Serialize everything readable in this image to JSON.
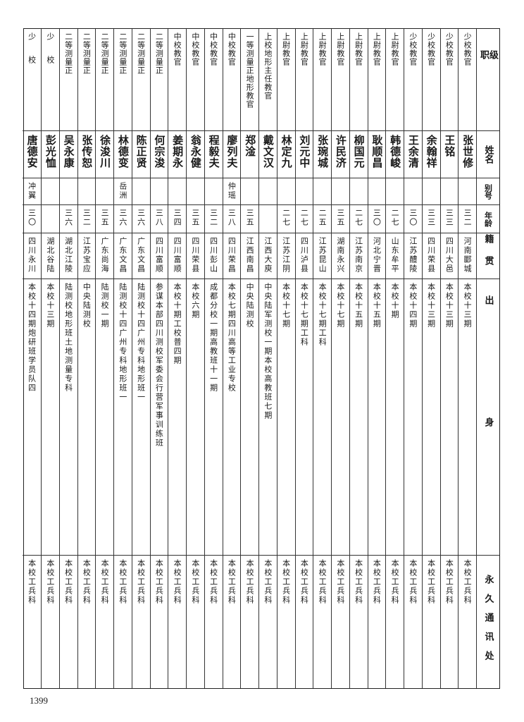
{
  "header": {
    "rank": "级职",
    "name": "姓名",
    "alias": "别号",
    "age": "年龄",
    "native_place": "籍贯",
    "background": "出身",
    "address": "永久通讯处"
  },
  "rows": [
    {
      "rank": "少校教官",
      "name": "张世修",
      "alias": "",
      "age": "三二",
      "native_place": "河南郾城",
      "background": "本校十三期",
      "address": "本校工兵科"
    },
    {
      "rank": "少校教官",
      "name": "王铭",
      "alias": "",
      "age": "三三",
      "native_place": "四川大邑",
      "background": "本校十三期",
      "address": "本校工兵科"
    },
    {
      "rank": "少校教官",
      "name": "余翰祥",
      "alias": "",
      "age": "三三",
      "native_place": "四川荣县",
      "background": "本校十三期",
      "address": "本校工兵科"
    },
    {
      "rank": "少校教官",
      "name": "王余清",
      "alias": "",
      "age": "三〇",
      "native_place": "江苏醴陵",
      "background": "本校十四期",
      "address": "本校工兵科"
    },
    {
      "rank": "上尉教官",
      "name": "韩德峻",
      "alias": "",
      "age": "二七",
      "native_place": "山东牟平",
      "background": "本校十期",
      "address": "本校工兵科"
    },
    {
      "rank": "上尉教官",
      "name": "耿顺昌",
      "alias": "",
      "age": "三〇",
      "native_place": "河北宁晋",
      "background": "本校十五期",
      "address": "本校工兵科"
    },
    {
      "rank": "上尉教官",
      "name": "柳国元",
      "alias": "",
      "age": "二七",
      "native_place": "江苏南京",
      "background": "本校十五期",
      "address": "本校工兵科"
    },
    {
      "rank": "上尉教官",
      "name": "许民济",
      "alias": "",
      "age": "三五",
      "native_place": "湖南永兴",
      "background": "本校十七期",
      "address": "本校工兵科"
    },
    {
      "rank": "上尉教官",
      "name": "张琬城",
      "alias": "",
      "age": "二五",
      "native_place": "江苏昆山",
      "background": "本校十七期工科",
      "address": "本校工兵科"
    },
    {
      "rank": "上尉教官",
      "name": "刘元中",
      "alias": "",
      "age": "二七",
      "native_place": "四川泸县",
      "background": "本校十七期工科",
      "address": "本校工兵科"
    },
    {
      "rank": "上尉教官",
      "name": "林定九",
      "alias": "",
      "age": "二七",
      "native_place": "江苏江阴",
      "background": "本校十七期",
      "address": "本校工兵科"
    },
    {
      "rank": "上校地形主任教官",
      "name": "戴文汉",
      "alias": "",
      "age": "",
      "native_place": "江西大庾",
      "background": "中央陆军测校一期本校高教班七期",
      "address": "本校工兵科"
    },
    {
      "rank": "一等测量正地形教官",
      "name": "郑淦",
      "alias": "",
      "age": "三五",
      "native_place": "江西南昌",
      "background": "中央陆测校",
      "address": "本校工兵科"
    },
    {
      "rank": "中校教官",
      "name": "廖列夫",
      "alias": "仲瑶",
      "age": "三八",
      "native_place": "四川荣昌",
      "background": "本校七期四川高等工业专校",
      "address": "本校工兵科"
    },
    {
      "rank": "中校教官",
      "name": "程毅夫",
      "alias": "",
      "age": "三二",
      "native_place": "四川彭山",
      "background": "成都分校一期高教班十一期",
      "address": "本校工兵科"
    },
    {
      "rank": "中校教官",
      "name": "翁永健",
      "alias": "",
      "age": "三五",
      "native_place": "四川荣县",
      "background": "本校六期",
      "address": "本校工兵科"
    },
    {
      "rank": "中校教官",
      "name": "姜期永",
      "alias": "",
      "age": "三四",
      "native_place": "四川富顺",
      "background": "本校十期工校普四期",
      "address": "本校工兵科"
    },
    {
      "rank": "二等测量正",
      "name": "何宗浚",
      "alias": "",
      "age": "三八",
      "native_place": "四川富顺",
      "background": "参谋本部四川测校军委会行营军事训练班",
      "address": "本校工兵科"
    },
    {
      "rank": "二等测量正",
      "name": "陈正贤",
      "alias": "",
      "age": "三六",
      "native_place": "广东文昌",
      "background": "陆测校十四广州专科地形班一",
      "address": "本校工兵科"
    },
    {
      "rank": "二等测量正",
      "name": "林德变",
      "alias": "岳洲",
      "age": "三六",
      "native_place": "广东文昌",
      "background": "陆测校十四广州专科地形班一",
      "address": "本校工兵科"
    },
    {
      "rank": "二等测量正",
      "name": "徐浚川",
      "alias": "",
      "age": "三五",
      "native_place": "广东尚海",
      "background": "陆测校一期",
      "address": "本校工兵科"
    },
    {
      "rank": "二等测量正",
      "name": "张传恕",
      "alias": "",
      "age": "三二",
      "native_place": "江苏宝应",
      "background": "中央陆测校",
      "address": "本校工兵科"
    },
    {
      "rank": "二等测量正",
      "name": "吴永康",
      "alias": "",
      "age": "三六",
      "native_place": "湖北江陵",
      "background": "陆测校地形班土地测量专科",
      "address": "本校工兵科"
    },
    {
      "rank": "少校",
      "name": "彭光恤",
      "alias": "",
      "age": "",
      "native_place": "湖北谷陆",
      "background": "本校十三期",
      "address": "本校工兵科"
    },
    {
      "rank": "少校",
      "name": "唐德安",
      "alias": "冲翼",
      "age": "三〇",
      "native_place": "四川永川",
      "background": "本校十四期炮研班学员队四",
      "address": "本校工兵科"
    }
  ],
  "page_number": "1399"
}
